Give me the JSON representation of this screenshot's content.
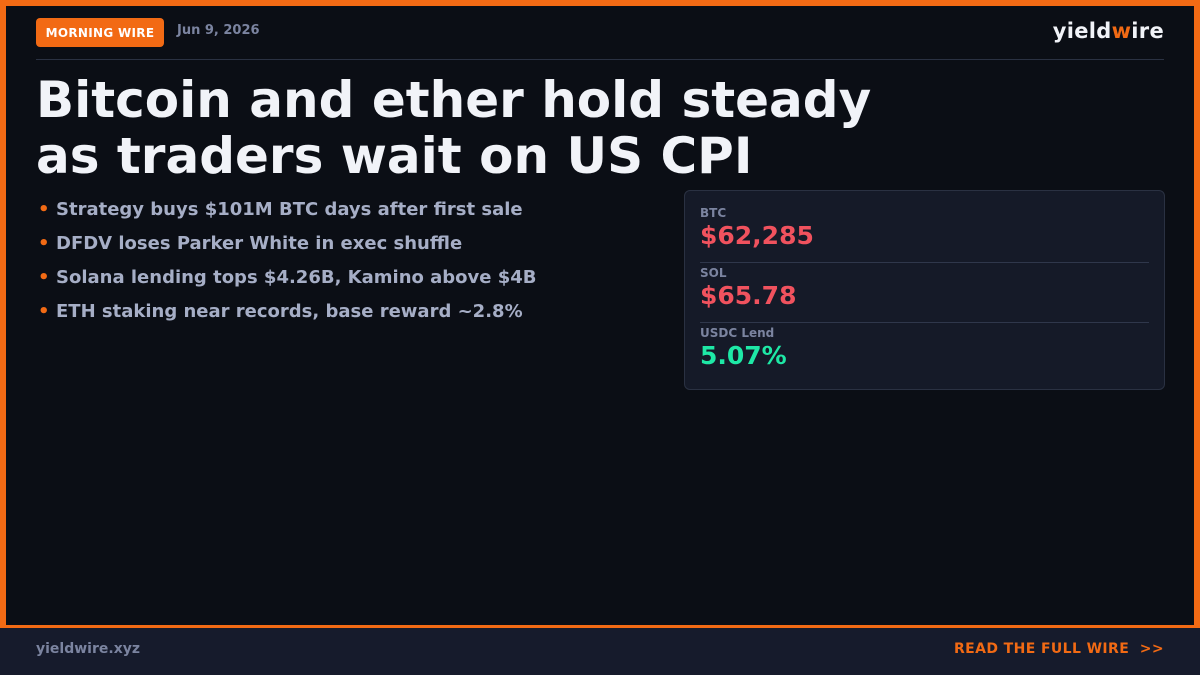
{
  "header": {
    "badge": "MORNING WIRE",
    "date": "Jun 9, 2026",
    "brand_prefix": "yield",
    "brand_accent": "w",
    "brand_suffix": "ire"
  },
  "headline": {
    "line1": "Bitcoin and ether hold steady",
    "line2": "as traders wait on US CPI"
  },
  "bullets": [
    "Strategy buys $101M BTC days after first sale",
    "DFDV loses Parker White in exec shuffle",
    "Solana lending tops $4.26B, Kamino above $4B",
    "ETH staking near records, base reward ~2.8%"
  ],
  "bullet_glyph": "•",
  "stats": [
    {
      "label": "BTC",
      "value": "$62,285",
      "color": "#f0525e"
    },
    {
      "label": "SOL",
      "value": "$65.78",
      "color": "#f0525e"
    },
    {
      "label": "USDC Lend",
      "value": "5.07%",
      "color": "#1ee8a6"
    }
  ],
  "footer": {
    "site": "yieldwire.xyz",
    "cta": "READ THE FULL WIRE  >>"
  },
  "colors": {
    "accent": "#f26a14",
    "negative": "#f0525e",
    "positive": "#1ee8a6",
    "background": "#0b0e15"
  }
}
